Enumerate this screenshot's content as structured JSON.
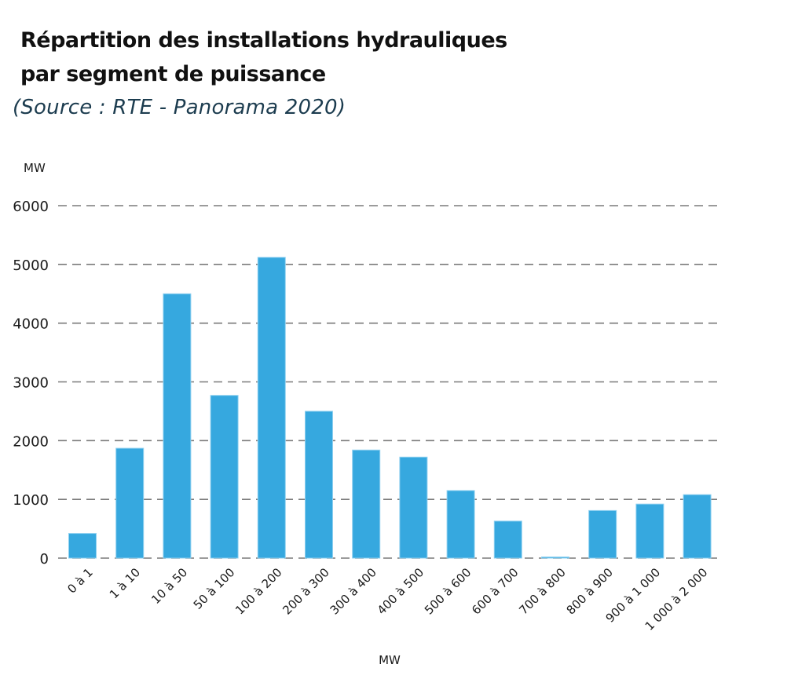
{
  "chart_data": {
    "type": "bar",
    "title": "Répartition des installations hydrauliques par segment de puissance",
    "title_lines": [
      "Répartition des installations hydrauliques",
      "par segment de puissance"
    ],
    "subtitle": "(Source : RTE - Panorama 2020)",
    "ylabel": "MW",
    "xlabel": "MW",
    "ylim": [
      0,
      6000
    ],
    "yticks": [
      0,
      1000,
      2000,
      3000,
      4000,
      5000,
      6000
    ],
    "grid": true,
    "legend": "none",
    "bar_color": "#36a8df",
    "categories": [
      "0 à 1",
      "1 à 10",
      "10 à 50",
      "50 à 100",
      "100 à 200",
      "200 à 300",
      "300 à 400",
      "400 à 500",
      "500 à 600",
      "600 à 700",
      "700 à 800",
      "800 à 900",
      "900 à 1 000",
      "1 000 à 2 000"
    ],
    "values": [
      420,
      1870,
      4500,
      2770,
      5120,
      2500,
      1840,
      1720,
      1150,
      630,
      15,
      810,
      920,
      1080
    ]
  }
}
